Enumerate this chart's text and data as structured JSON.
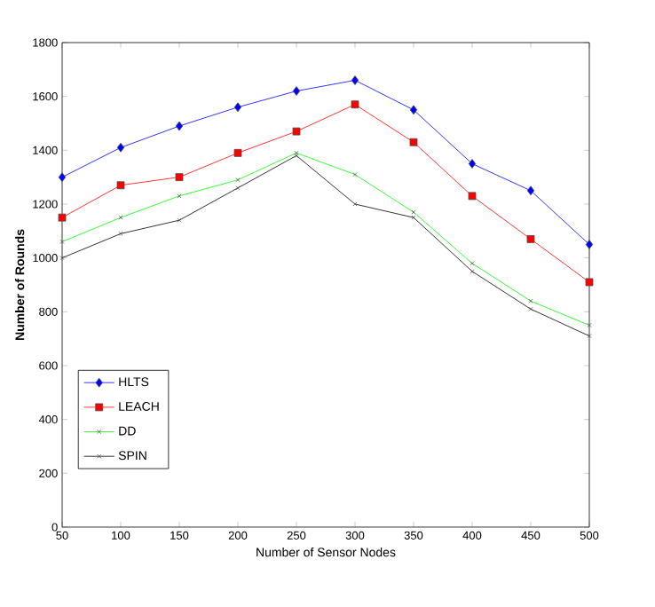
{
  "chart_data": {
    "type": "line",
    "xlabel": "Number of Sensor Nodes",
    "ylabel": "Number of Rounds",
    "x": [
      50,
      100,
      150,
      200,
      250,
      300,
      350,
      400,
      450,
      500
    ],
    "series": [
      {
        "name": "HLTS",
        "color": "#0000ff",
        "marker": "diamond",
        "values": [
          1300,
          1410,
          1490,
          1560,
          1620,
          1660,
          1550,
          1350,
          1250,
          1050
        ]
      },
      {
        "name": "LEACH",
        "color": "#ff0000",
        "marker": "square",
        "values": [
          1150,
          1270,
          1300,
          1390,
          1470,
          1570,
          1430,
          1230,
          1070,
          910
        ]
      },
      {
        "name": "DD",
        "color": "#00ff00",
        "marker": "cross",
        "values": [
          1060,
          1150,
          1230,
          1290,
          1390,
          1310,
          1170,
          980,
          840,
          750
        ]
      },
      {
        "name": "SPIN",
        "color": "#000000",
        "marker": "cross",
        "values": [
          1000,
          1090,
          1140,
          1260,
          1380,
          1200,
          1150,
          950,
          810,
          710
        ]
      }
    ],
    "xlim": [
      50,
      500
    ],
    "ylim": [
      0,
      1800
    ],
    "xticks": [
      50,
      100,
      150,
      200,
      250,
      300,
      350,
      400,
      450,
      500
    ],
    "yticks": [
      0,
      200,
      400,
      600,
      800,
      1000,
      1200,
      1400,
      1600,
      1800
    ],
    "legend": "bottom left",
    "grid": false
  }
}
